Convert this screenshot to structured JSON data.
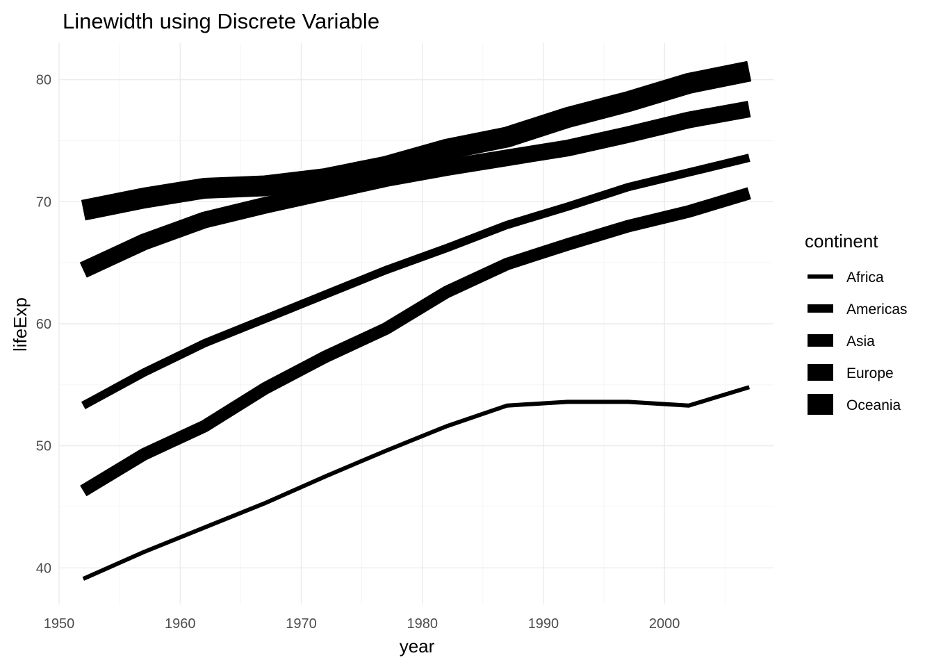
{
  "chart_data": {
    "type": "line",
    "title": "Linewidth using Discrete Variable",
    "xlabel": "year",
    "ylabel": "lifeExp",
    "x": [
      1952,
      1957,
      1962,
      1967,
      1972,
      1977,
      1982,
      1987,
      1992,
      1997,
      2002,
      2007
    ],
    "xlim": [
      1950,
      2009
    ],
    "ylim": [
      37,
      83
    ],
    "x_ticks": [
      1950,
      1960,
      1970,
      1980,
      1990,
      2000
    ],
    "y_ticks": [
      40,
      50,
      60,
      70,
      80
    ],
    "grid": true,
    "legend": {
      "title": "continent",
      "position": "right"
    },
    "series": [
      {
        "name": "Africa",
        "linewidth": 1,
        "values": [
          39.1,
          41.3,
          43.3,
          45.3,
          47.5,
          49.6,
          51.6,
          53.3,
          53.6,
          53.6,
          53.3,
          54.8
        ]
      },
      {
        "name": "Americas",
        "linewidth": 2,
        "values": [
          53.3,
          56.0,
          58.4,
          60.4,
          62.4,
          64.4,
          66.2,
          68.1,
          69.6,
          71.2,
          72.4,
          73.6
        ]
      },
      {
        "name": "Asia",
        "linewidth": 3,
        "values": [
          46.3,
          49.3,
          51.6,
          54.7,
          57.3,
          59.6,
          62.6,
          64.9,
          66.5,
          68.0,
          69.2,
          70.7
        ]
      },
      {
        "name": "Europe",
        "linewidth": 4,
        "values": [
          64.4,
          66.7,
          68.5,
          69.7,
          70.8,
          71.9,
          72.8,
          73.6,
          74.4,
          75.5,
          76.7,
          77.6
        ]
      },
      {
        "name": "Oceania",
        "linewidth": 5,
        "values": [
          69.3,
          70.3,
          71.1,
          71.3,
          71.9,
          72.9,
          74.3,
          75.3,
          76.9,
          78.2,
          79.7,
          80.7
        ]
      }
    ]
  }
}
